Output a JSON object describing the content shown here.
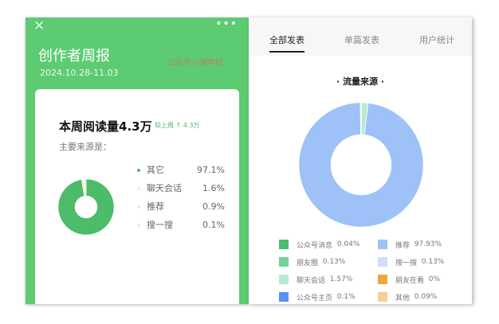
{
  "left": {
    "close_icon": "×",
    "more_icon": "•••",
    "title": "创作者周报",
    "date": "2024.10.28-11.03",
    "watermark": "公众号小满学社",
    "headline": "本周阅读量4.3万",
    "compare": "较上周 ↑ 4.3万",
    "subtitle": "主要来源是：",
    "sources": [
      {
        "label": "其它",
        "pct": "97.1%",
        "value": 97.1,
        "color": "#4cbb6a"
      },
      {
        "label": "聊天会话",
        "pct": "1.6%",
        "value": 1.6,
        "color": "#f3f3c8"
      },
      {
        "label": "推荐",
        "pct": "0.9%",
        "value": 0.9,
        "color": "#d9ecf2"
      },
      {
        "label": "搜一搜",
        "pct": "0.1%",
        "value": 0.1,
        "color": "#f5f0c0"
      }
    ]
  },
  "right": {
    "tabs": [
      {
        "label": "全部发表",
        "active": true
      },
      {
        "label": "单篇发表"
      },
      {
        "label": "用户统计"
      }
    ],
    "chart_title": "· 流量来源 ·"
  },
  "chart_data": {
    "type": "pie",
    "donut": true,
    "title": "· 流量来源 ·",
    "legend": "bottom",
    "categories": [
      "公众号消息",
      "朋友圈",
      "聊天会话",
      "公众号主页",
      "推荐",
      "搜一搜",
      "朋友在看",
      "其他"
    ],
    "values": [
      0.04,
      0.13,
      1.57,
      0.1,
      97.93,
      0.13,
      0,
      0.09
    ],
    "labels": [
      "0.04%",
      "0.13%",
      "1.57%",
      "0.1%",
      "97.93%",
      "0.13%",
      "0%",
      "0.09%"
    ],
    "colors": [
      "#4cbb6a",
      "#6ed49b",
      "#b5ebd0",
      "#5b8ff9",
      "#9ec1f7",
      "#cfe0fb",
      "#f0a540",
      "#f7cf92"
    ]
  }
}
